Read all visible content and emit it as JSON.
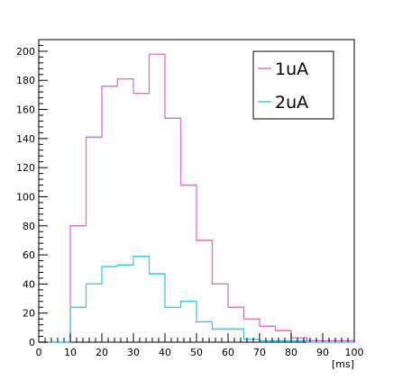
{
  "chart_data": {
    "type": "histogram",
    "title": "",
    "xlabel": "[ms]",
    "ylabel": "",
    "xlim": [
      0,
      100
    ],
    "ylim": [
      0,
      208
    ],
    "grid": false,
    "legend_position": "top-right",
    "x_ticks": [
      0,
      10,
      20,
      30,
      40,
      50,
      60,
      70,
      80,
      90,
      100
    ],
    "y_ticks": [
      0,
      20,
      40,
      60,
      80,
      100,
      120,
      140,
      160,
      180,
      200
    ],
    "bin_width": 5,
    "bin_edges": [
      0,
      5,
      10,
      15,
      20,
      25,
      30,
      35,
      40,
      45,
      50,
      55,
      60,
      65,
      70,
      75,
      80,
      85,
      90,
      95,
      100
    ],
    "series": [
      {
        "name": "1uA",
        "color": "#e070c8",
        "values": [
          0,
          0,
          80,
          141,
          176,
          181,
          171,
          198,
          154,
          108,
          70,
          40,
          24,
          16,
          11,
          8,
          3,
          1,
          1,
          1
        ]
      },
      {
        "name": "2uA",
        "color": "#40c8e8",
        "values": [
          0,
          0,
          24,
          40,
          52,
          53,
          59,
          47,
          24,
          28,
          14,
          9,
          9,
          2,
          1,
          1,
          1,
          0,
          0,
          0
        ]
      }
    ]
  }
}
